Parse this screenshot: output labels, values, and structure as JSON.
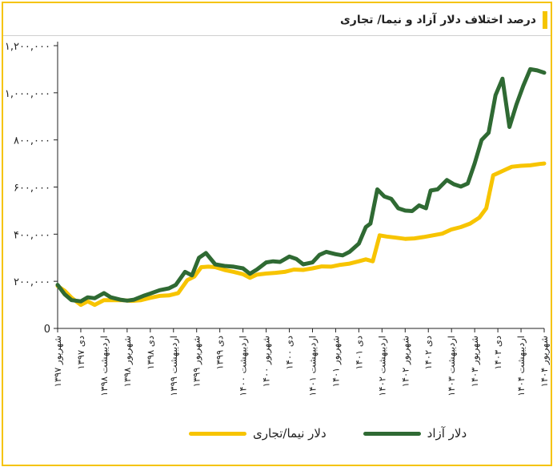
{
  "title": "درصد اختلاف دلار آزاد و نیما/ تجاری",
  "colors": {
    "free": "#2f6a33",
    "nima": "#f7c400",
    "frame": "#f5c400"
  },
  "chart_data": {
    "type": "line",
    "title": "درصد اختلاف دلار آزاد و نیما/ تجاری",
    "ylim": [
      0,
      1200000
    ],
    "y_ticks": [
      {
        "value": 0,
        "label": "0"
      },
      {
        "value": 200000,
        "label": "۲۰۰,۰۰۰"
      },
      {
        "value": 400000,
        "label": "۴۰۰,۰۰۰"
      },
      {
        "value": 600000,
        "label": "۶۰۰,۰۰۰"
      },
      {
        "value": 800000,
        "label": "۸۰۰,۰۰۰"
      },
      {
        "value": 1000000,
        "label": "۱,۰۰۰,۰۰۰"
      },
      {
        "value": 1200000,
        "label": "۱,۲۰۰,۰۰۰"
      }
    ],
    "x_range": [
      0,
      21
    ],
    "x_ticks": [
      "شهریور ۱۳۹۷",
      "دی ۱۳۹۷",
      "اردیبهشت ۱۳۹۸",
      "شهریور ۱۳۹۸",
      "دی ۱۳۹۸",
      "اردیبهشت ۱۳۹۹",
      "شهریور ۱۳۹۹",
      "دی ۱۳۹۹",
      "اردیبهشت ۱۴۰۰",
      "شهریور ۱۴۰۰",
      "دی ۱۴۰۰",
      "اردیبهشت ۱۴۰۱",
      "شهریور ۱۴۰۱",
      "دی ۱۴۰۱",
      "اردیبهشت ۱۴۰۲",
      "شهریور ۱۴۰۲",
      "دی ۱۴۰۲",
      "اردیبهشت ۱۴۰۳",
      "شهریور ۱۴۰۳",
      "دی ۱۴۰۳",
      "اردیبهشت ۱۴۰۴",
      "شهریور ۱۴۰۴"
    ],
    "series": [
      {
        "name": "دلار آزاد",
        "color": "#2f6a33",
        "points": [
          [
            0,
            185000
          ],
          [
            0.3,
            145000
          ],
          [
            0.6,
            120000
          ],
          [
            1.0,
            115000
          ],
          [
            1.3,
            132000
          ],
          [
            1.6,
            128000
          ],
          [
            2.0,
            150000
          ],
          [
            2.3,
            132000
          ],
          [
            2.7,
            122000
          ],
          [
            3.0,
            118000
          ],
          [
            3.3,
            122000
          ],
          [
            3.7,
            138000
          ],
          [
            4.0,
            148000
          ],
          [
            4.4,
            162000
          ],
          [
            4.8,
            170000
          ],
          [
            5.1,
            185000
          ],
          [
            5.5,
            240000
          ],
          [
            5.8,
            225000
          ],
          [
            6.1,
            300000
          ],
          [
            6.4,
            320000
          ],
          [
            6.8,
            272000
          ],
          [
            7.2,
            265000
          ],
          [
            7.6,
            262000
          ],
          [
            8.0,
            255000
          ],
          [
            8.3,
            232000
          ],
          [
            8.6,
            250000
          ],
          [
            9.0,
            280000
          ],
          [
            9.3,
            285000
          ],
          [
            9.6,
            282000
          ],
          [
            10.0,
            305000
          ],
          [
            10.3,
            295000
          ],
          [
            10.6,
            272000
          ],
          [
            11.0,
            280000
          ],
          [
            11.3,
            312000
          ],
          [
            11.6,
            325000
          ],
          [
            12.0,
            315000
          ],
          [
            12.3,
            310000
          ],
          [
            12.6,
            325000
          ],
          [
            13.0,
            360000
          ],
          [
            13.3,
            430000
          ],
          [
            13.5,
            445000
          ],
          [
            13.8,
            590000
          ],
          [
            14.1,
            560000
          ],
          [
            14.4,
            550000
          ],
          [
            14.7,
            510000
          ],
          [
            15.0,
            500000
          ],
          [
            15.3,
            498000
          ],
          [
            15.6,
            522000
          ],
          [
            15.9,
            510000
          ],
          [
            16.1,
            585000
          ],
          [
            16.4,
            590000
          ],
          [
            16.8,
            630000
          ],
          [
            17.1,
            612000
          ],
          [
            17.4,
            602000
          ],
          [
            17.7,
            615000
          ],
          [
            18.0,
            700000
          ],
          [
            18.3,
            800000
          ],
          [
            18.6,
            830000
          ],
          [
            18.9,
            990000
          ],
          [
            19.2,
            1060000
          ],
          [
            19.5,
            855000
          ],
          [
            19.8,
            950000
          ],
          [
            20.1,
            1030000
          ],
          [
            20.4,
            1100000
          ],
          [
            20.7,
            1095000
          ],
          [
            21.0,
            1085000
          ]
        ]
      },
      {
        "name": "دلار نیما/تجاری",
        "color": "#f7c400",
        "points": [
          [
            0,
            180000
          ],
          [
            0.3,
            160000
          ],
          [
            0.6,
            130000
          ],
          [
            1.0,
            100000
          ],
          [
            1.3,
            115000
          ],
          [
            1.6,
            100000
          ],
          [
            2.0,
            120000
          ],
          [
            2.4,
            120000
          ],
          [
            2.8,
            120000
          ],
          [
            3.2,
            117000
          ],
          [
            3.6,
            120000
          ],
          [
            4.0,
            130000
          ],
          [
            4.4,
            138000
          ],
          [
            4.8,
            140000
          ],
          [
            5.2,
            150000
          ],
          [
            5.6,
            205000
          ],
          [
            5.9,
            220000
          ],
          [
            6.2,
            260000
          ],
          [
            6.5,
            262000
          ],
          [
            6.8,
            260000
          ],
          [
            7.2,
            248000
          ],
          [
            7.6,
            240000
          ],
          [
            8.0,
            230000
          ],
          [
            8.3,
            215000
          ],
          [
            8.6,
            228000
          ],
          [
            9.0,
            233000
          ],
          [
            9.4,
            236000
          ],
          [
            9.8,
            240000
          ],
          [
            10.2,
            250000
          ],
          [
            10.6,
            248000
          ],
          [
            11.0,
            255000
          ],
          [
            11.4,
            263000
          ],
          [
            11.8,
            262000
          ],
          [
            12.2,
            270000
          ],
          [
            12.6,
            275000
          ],
          [
            13.0,
            285000
          ],
          [
            13.3,
            293000
          ],
          [
            13.6,
            285000
          ],
          [
            13.9,
            395000
          ],
          [
            14.2,
            390000
          ],
          [
            14.6,
            385000
          ],
          [
            15.0,
            380000
          ],
          [
            15.4,
            382000
          ],
          [
            15.8,
            388000
          ],
          [
            16.2,
            395000
          ],
          [
            16.6,
            402000
          ],
          [
            17.0,
            420000
          ],
          [
            17.4,
            430000
          ],
          [
            17.8,
            445000
          ],
          [
            18.2,
            470000
          ],
          [
            18.5,
            510000
          ],
          [
            18.8,
            650000
          ],
          [
            19.2,
            668000
          ],
          [
            19.6,
            686000
          ],
          [
            20.0,
            690000
          ],
          [
            20.4,
            692000
          ],
          [
            20.8,
            698000
          ],
          [
            21.0,
            700000
          ]
        ]
      }
    ]
  },
  "legend": [
    {
      "label": "دلار آزاد",
      "color": "#2f6a33"
    },
    {
      "label": "دلار نیما/تجاری",
      "color": "#f7c400"
    }
  ]
}
